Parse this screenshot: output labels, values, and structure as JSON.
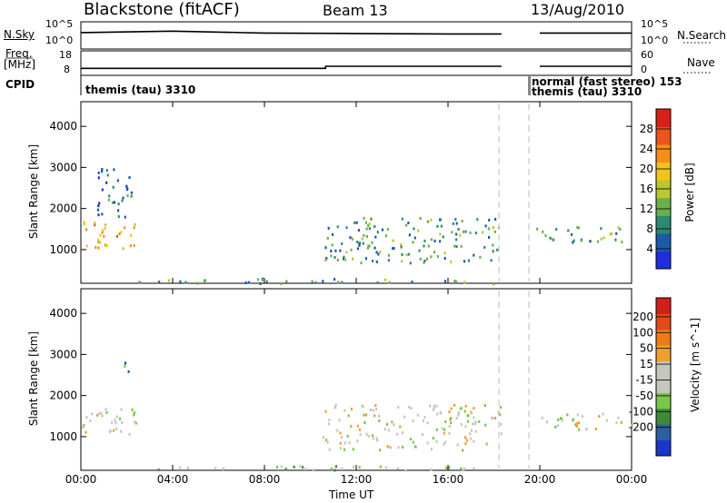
{
  "header": {
    "station": "Blackstone (fitACF)",
    "beam": "Beam 13",
    "date": "13/Aug/2010"
  },
  "side_labels": {
    "nsky": "N.Sky",
    "freq": "Freq.",
    "freq_unit": "[MHz]",
    "cpid": "CPID",
    "nsearch": "N.Search",
    "nave": "Nave"
  },
  "cpid": {
    "left": "themis (tau) 3310",
    "right_top": "normal (fast stereo) 153",
    "right_bottom": "themis (tau) 3310"
  },
  "colors": {
    "power_scale": [
      "#1f2fd8",
      "#1c5aa8",
      "#2e8a6e",
      "#6ab04c",
      "#b7c834",
      "#f2c41a",
      "#f28f1a",
      "#e8561c",
      "#d6201a"
    ],
    "velocity_scale": [
      "#1d36c8",
      "#2c5ea0",
      "#3f8a3a",
      "#79c64a",
      "#c6c6c0",
      "#c6c6c0",
      "#f0a030",
      "#ef7a18",
      "#e04a18",
      "#d0201a"
    ]
  },
  "chart_data": [
    {
      "type": "line",
      "name": "N.Sky / N.Search",
      "ytick_left": [
        "10^5",
        "10^0"
      ],
      "ytick_right": [
        "10^5",
        "10^0"
      ],
      "x": [
        "00:00",
        "04:00",
        "08:00",
        "12:00",
        "16:00",
        "18:20",
        "19:40",
        "20:00",
        "24:00"
      ],
      "series": [
        {
          "values": [
            3.1,
            3.4,
            3.0,
            2.9,
            2.8,
            2.8,
            null,
            3.0,
            3.0
          ]
        }
      ]
    },
    {
      "type": "line",
      "name": "Freq / Nave",
      "ytick_left": [
        "18",
        "8"
      ],
      "ytick_right": [
        "60",
        "0"
      ],
      "x": [
        "00:00",
        "10:40",
        "10:40",
        "16:00",
        "18:20",
        "19:40",
        "20:00",
        "24:00"
      ],
      "series": [
        {
          "values": [
            10.5,
            10.5,
            11.5,
            11.5,
            11.5,
            null,
            11.5,
            11.5
          ]
        }
      ]
    },
    {
      "type": "heatmap",
      "name": "Power",
      "ylabel": "Slant Range [km]",
      "yticks": [
        "4000",
        "3000",
        "2000",
        "1000"
      ],
      "ylim": [
        180,
        4600
      ],
      "xlim": [
        "00:00",
        "24:00"
      ],
      "colorbar_label": "Power [dB]",
      "colorbar_ticks": [
        "28",
        "24",
        "20",
        "16",
        "12",
        "8",
        "4"
      ],
      "colorbar_range": [
        0,
        32
      ],
      "echo_regions": [
        {
          "t_start": 0.0,
          "t_end": 2.6,
          "range_low": 1000,
          "range_high": 1700,
          "level": 20
        },
        {
          "t_start": 0.7,
          "t_end": 2.2,
          "range_low": 1700,
          "range_high": 3000,
          "level": 6
        },
        {
          "t_start": 2.5,
          "t_end": 18.3,
          "range_low": 200,
          "range_high": 320,
          "level": 10
        },
        {
          "t_start": 10.5,
          "t_end": 18.3,
          "range_low": 700,
          "range_high": 1800,
          "level": 10
        },
        {
          "t_start": 19.8,
          "t_end": 24.0,
          "range_low": 1200,
          "range_high": 1600,
          "level": 10
        }
      ]
    },
    {
      "type": "heatmap",
      "name": "Velocity",
      "ylabel": "Slant Range [km]",
      "yticks": [
        "4000",
        "3000",
        "2000",
        "1000"
      ],
      "ylim": [
        180,
        4600
      ],
      "xlabel": "Time UT",
      "xticks": [
        "00:00",
        "04:00",
        "08:00",
        "12:00",
        "16:00",
        "20:00",
        "00:00"
      ],
      "xlim": [
        "00:00",
        "24:00"
      ],
      "colorbar_label": "Velocity [m s^-1]",
      "colorbar_ticks": [
        "200",
        "100",
        "50",
        "15",
        "-15",
        "-50",
        "-100",
        "-200"
      ],
      "colorbar_range": [
        -250,
        250
      ],
      "echo_regions": [
        {
          "t_start": 0.0,
          "t_end": 2.6,
          "range_low": 1000,
          "range_high": 1700,
          "level": 0
        },
        {
          "t_start": 1.8,
          "t_end": 2.2,
          "range_low": 2500,
          "range_high": 3000,
          "level": -150
        },
        {
          "t_start": 2.5,
          "t_end": 18.3,
          "range_low": 200,
          "range_high": 320,
          "level": -40
        },
        {
          "t_start": 10.5,
          "t_end": 18.3,
          "range_low": 700,
          "range_high": 1800,
          "level": 0
        },
        {
          "t_start": 19.8,
          "t_end": 24.0,
          "range_low": 1200,
          "range_high": 1600,
          "level": 0
        }
      ]
    }
  ],
  "subtitle_units": {
    "velocity_unit": "[m s"
  }
}
